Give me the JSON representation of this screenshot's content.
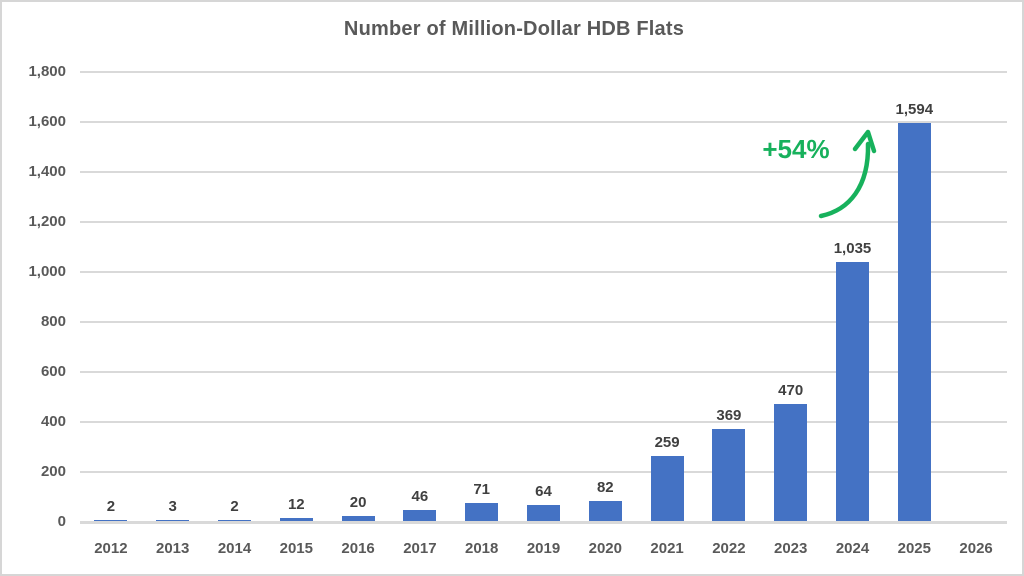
{
  "chart_data": {
    "type": "bar",
    "title": "Number of Million-Dollar HDB Flats",
    "categories": [
      "2012",
      "2013",
      "2014",
      "2015",
      "2016",
      "2017",
      "2018",
      "2019",
      "2020",
      "2021",
      "2022",
      "2023",
      "2024",
      "2025",
      "2026"
    ],
    "values": [
      2,
      3,
      2,
      12,
      20,
      46,
      71,
      64,
      82,
      259,
      369,
      470,
      1035,
      1594,
      null
    ],
    "value_labels": [
      "2",
      "3",
      "2",
      "12",
      "20",
      "46",
      "71",
      "64",
      "82",
      "259",
      "369",
      "470",
      "1,035",
      "1,594",
      ""
    ],
    "xlabel": "",
    "ylabel": "",
    "ylim": [
      0,
      1800
    ],
    "ytick_step": 200,
    "ytick_labels": [
      "0",
      "200",
      "400",
      "600",
      "800",
      "1,000",
      "1,200",
      "1,400",
      "1,600",
      "1,800"
    ],
    "grid": "horizontal",
    "legend": "none",
    "annotation": {
      "text": "+54%"
    },
    "colors": {
      "bar": "#4472c4",
      "gridline": "#d9d9d9",
      "axis_text": "#595959",
      "value_text": "#404040",
      "title_text": "#595959",
      "annotation": "#17b15c"
    }
  }
}
